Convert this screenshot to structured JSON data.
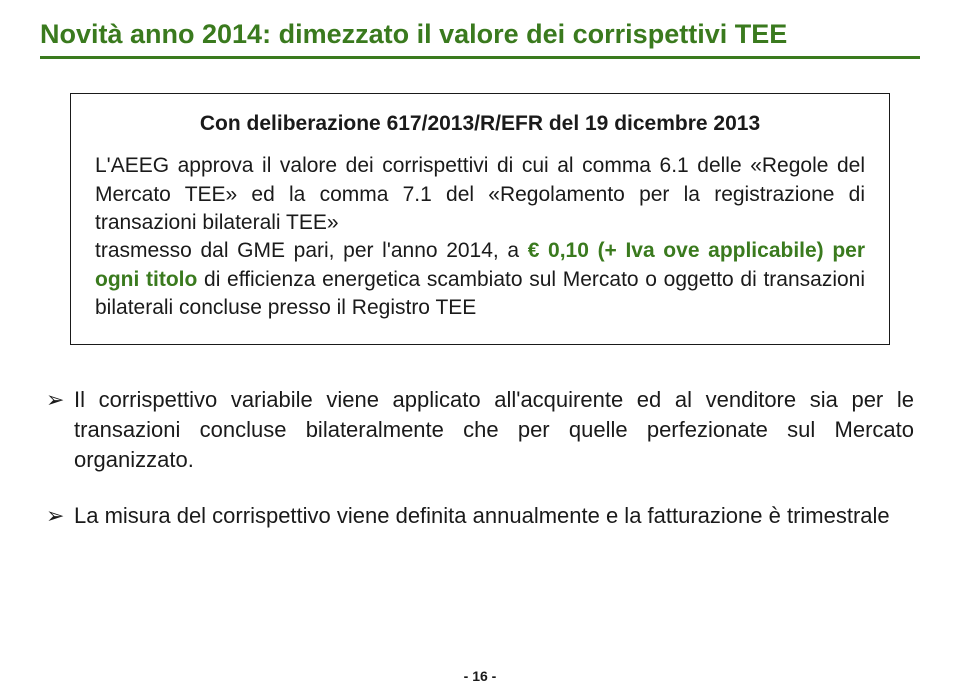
{
  "title": "Novità anno 2014: dimezzato il valore dei corrispettivi TEE",
  "box": {
    "heading": "Con deliberazione 617/2013/R/EFR del 19 dicembre 2013",
    "body_pre": "L'AEEG approva il valore dei corrispettivi di cui al comma 6.1 delle «Regole del Mercato TEE» ed la comma 7.1 del «Regolamento per la registrazione di transazioni bilaterali TEE»",
    "body_mid_plain": "trasmesso dal GME pari, per l'anno 2014, a ",
    "price": "€ 0,10 (+ Iva ove applicabile) per ogni titolo",
    "body_post": " di efficienza energetica scambiato sul Mercato o oggetto di transazioni bilaterali concluse presso il Registro TEE"
  },
  "bullets": [
    "Il corrispettivo variabile viene applicato all'acquirente ed al venditore sia per le transazioni concluse bilateralmente che per quelle perfezionate sul Mercato organizzato.",
    "La misura del corrispettivo viene definita annualmente e la fatturazione è trimestrale"
  ],
  "footer": "- 16 -",
  "colors": {
    "accent": "#3a7a1e",
    "text": "#1a1a1a",
    "background": "#ffffff",
    "border": "#1a1a1a"
  }
}
